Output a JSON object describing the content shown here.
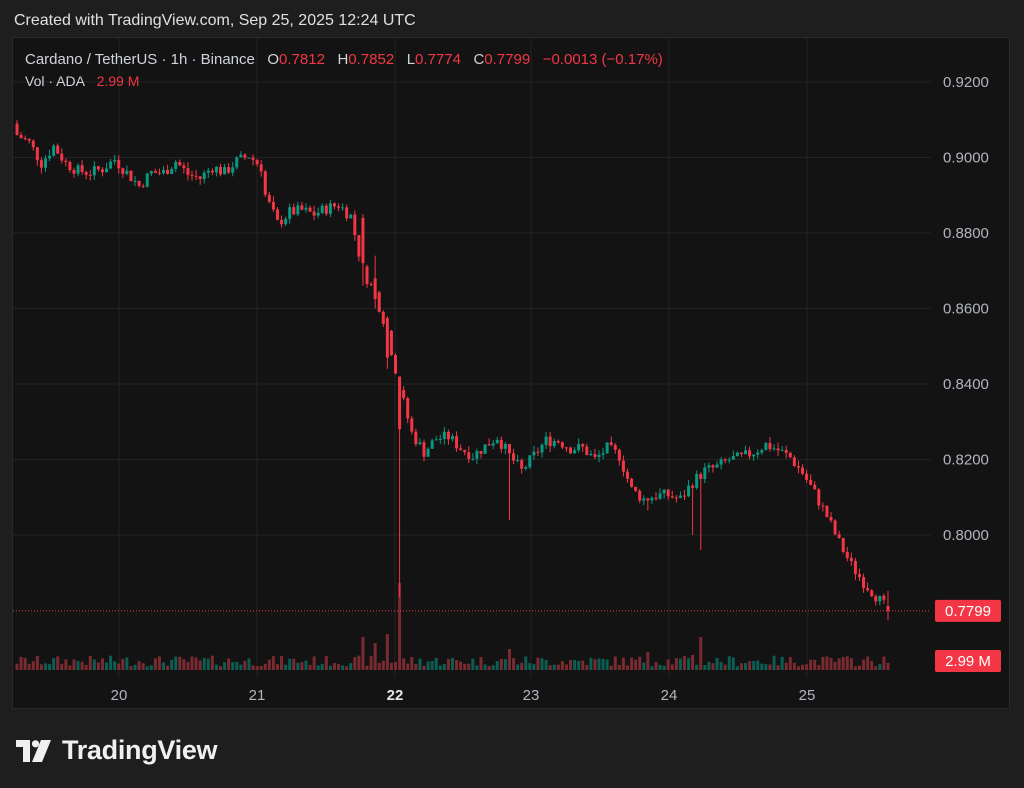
{
  "header": {
    "created": "Created with TradingView.com, Sep 25, 2025 12:24 UTC"
  },
  "legend": {
    "symbol": "Cardano / TetherUS · 1h · Binance",
    "o_label": "O",
    "o_value": "0.7812",
    "h_label": "H",
    "h_value": "0.7852",
    "l_label": "L",
    "l_value": "0.7774",
    "c_label": "C",
    "c_value": "0.7799",
    "change": "−0.0013 (−0.17%)",
    "vol_label": "Vol · ADA",
    "vol_value": "2.99 M"
  },
  "brand": {
    "name": "TradingView"
  },
  "colors": {
    "up": "#089981",
    "down": "#f23645",
    "grid": "#232323",
    "axis_text": "#b2b5be"
  },
  "chart_data": {
    "type": "candlestick",
    "ylim": [
      0.77,
      0.93
    ],
    "y_ticks": [
      "0.9200",
      "0.9000",
      "0.8800",
      "0.8600",
      "0.8400",
      "0.8200",
      "0.8000"
    ],
    "x_ticks": [
      "20",
      "21",
      "22",
      "23",
      "24",
      "25"
    ],
    "x_tick_bold": "22",
    "last_price": "0.7799",
    "last_volume": "2.99 M",
    "close_path": [
      [
        0,
        0.906
      ],
      [
        3,
        0.904
      ],
      [
        6,
        0.8985
      ],
      [
        9,
        0.903
      ],
      [
        12,
        0.8985
      ],
      [
        15,
        0.8965
      ],
      [
        18,
        0.896
      ],
      [
        21,
        0.897
      ],
      [
        24,
        0.8995
      ],
      [
        27,
        0.896
      ],
      [
        30,
        0.8925
      ],
      [
        33,
        0.896
      ],
      [
        36,
        0.896
      ],
      [
        39,
        0.899
      ],
      [
        42,
        0.8955
      ],
      [
        45,
        0.8945
      ],
      [
        48,
        0.8975
      ],
      [
        51,
        0.896
      ],
      [
        54,
        0.899
      ],
      [
        57,
        0.9005
      ],
      [
        60,
        0.8975
      ],
      [
        61,
        0.89
      ],
      [
        64,
        0.8825
      ],
      [
        67,
        0.8855
      ],
      [
        70,
        0.886
      ],
      [
        73,
        0.885
      ],
      [
        76,
        0.8865
      ],
      [
        79,
        0.8875
      ],
      [
        82,
        0.8845
      ],
      [
        85,
        0.87
      ],
      [
        88,
        0.864
      ],
      [
        91,
        0.854
      ],
      [
        94,
        0.839
      ],
      [
        97,
        0.827
      ],
      [
        100,
        0.822
      ],
      [
        103,
        0.8255
      ],
      [
        106,
        0.826
      ],
      [
        109,
        0.823
      ],
      [
        112,
        0.821
      ],
      [
        115,
        0.8235
      ],
      [
        118,
        0.826
      ],
      [
        121,
        0.821
      ],
      [
        124,
        0.817
      ],
      [
        127,
        0.821
      ],
      [
        130,
        0.825
      ],
      [
        133,
        0.825
      ],
      [
        136,
        0.823
      ],
      [
        139,
        0.823
      ],
      [
        142,
        0.82
      ],
      [
        145,
        0.823
      ],
      [
        148,
        0.821
      ],
      [
        151,
        0.812
      ],
      [
        154,
        0.8095
      ],
      [
        157,
        0.8105
      ],
      [
        160,
        0.8105
      ],
      [
        163,
        0.8095
      ],
      [
        166,
        0.814
      ],
      [
        169,
        0.817
      ],
      [
        172,
        0.818
      ],
      [
        175,
        0.82
      ],
      [
        178,
        0.8205
      ],
      [
        181,
        0.822
      ],
      [
        184,
        0.824
      ],
      [
        187,
        0.8225
      ],
      [
        190,
        0.8205
      ],
      [
        193,
        0.8165
      ],
      [
        196,
        0.811
      ],
      [
        199,
        0.805
      ],
      [
        202,
        0.798
      ],
      [
        205,
        0.792
      ],
      [
        208,
        0.7875
      ],
      [
        211,
        0.784
      ],
      [
        214,
        0.78
      ]
    ],
    "anomalies": [
      {
        "i": 94,
        "low": 0.7835,
        "high": 0.842,
        "open": 0.842,
        "close": 0.828,
        "vol": 14.5
      },
      {
        "i": 91,
        "open": 0.8575,
        "close": 0.847,
        "low": 0.844,
        "high": 0.858,
        "vol": 6.0
      },
      {
        "i": 88,
        "open": 0.868,
        "close": 0.8625,
        "low": 0.86,
        "high": 0.874,
        "vol": 4.5
      },
      {
        "i": 85,
        "open": 0.884,
        "close": 0.872,
        "low": 0.866,
        "high": 0.885,
        "vol": 5.5
      },
      {
        "i": 155,
        "low": 0.8065,
        "vol": 3.0
      },
      {
        "i": 166,
        "low": 0.8,
        "vol": 2.5
      },
      {
        "i": 168,
        "low": 0.796,
        "vol": 5.5
      },
      {
        "i": 121,
        "low": 0.804,
        "vol": 3.5
      }
    ]
  }
}
